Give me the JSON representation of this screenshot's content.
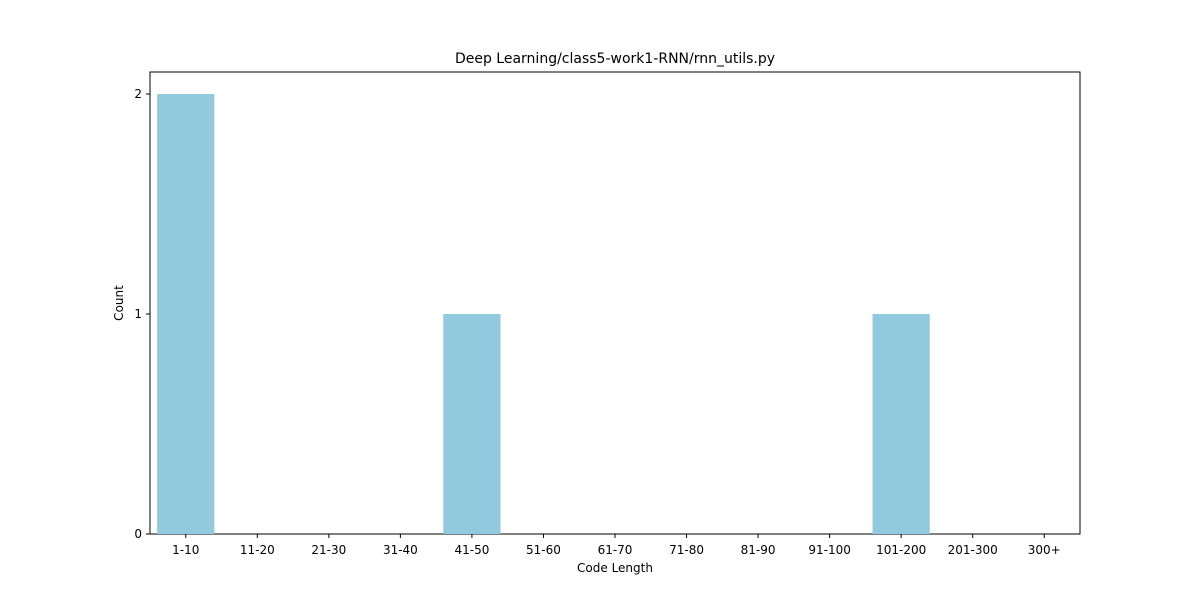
{
  "chart_data": {
    "type": "bar",
    "title": "Deep Learning/class5-work1-RNN/rnn_utils.py",
    "xlabel": "Code Length",
    "ylabel": "Count",
    "categories": [
      "1-10",
      "11-20",
      "21-30",
      "31-40",
      "41-50",
      "51-60",
      "61-70",
      "71-80",
      "81-90",
      "91-100",
      "101-200",
      "201-300",
      "300+"
    ],
    "values": [
      2,
      0,
      0,
      0,
      1,
      0,
      0,
      0,
      0,
      0,
      1,
      0,
      0
    ],
    "yticks": [
      "0",
      "1",
      "2"
    ],
    "ylim": [
      0,
      2.1
    ],
    "grid": false,
    "legend": "none",
    "bar_color": "#92c9de"
  }
}
